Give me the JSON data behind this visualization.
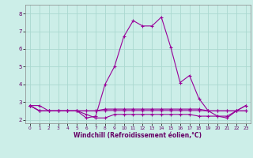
{
  "xlabel": "Windchill (Refroidissement éolien,°C)",
  "background_color": "#cceee8",
  "grid_color": "#aad8d0",
  "line_color": "#990099",
  "xlim": [
    -0.5,
    23.5
  ],
  "ylim": [
    1.8,
    8.5
  ],
  "xticks": [
    0,
    1,
    2,
    3,
    4,
    5,
    6,
    7,
    8,
    9,
    10,
    11,
    12,
    13,
    14,
    15,
    16,
    17,
    18,
    19,
    20,
    21,
    22,
    23
  ],
  "yticks": [
    2,
    3,
    4,
    5,
    6,
    7,
    8
  ],
  "series": [
    [
      2.8,
      2.8,
      2.5,
      2.5,
      2.5,
      2.5,
      2.1,
      2.2,
      4.0,
      5.0,
      6.7,
      7.6,
      7.3,
      7.3,
      7.8,
      6.1,
      4.1,
      4.5,
      3.2,
      2.5,
      2.2,
      2.1,
      2.5,
      2.8
    ],
    [
      2.8,
      2.5,
      2.5,
      2.5,
      2.5,
      2.5,
      2.5,
      2.5,
      2.6,
      2.6,
      2.6,
      2.6,
      2.6,
      2.6,
      2.6,
      2.6,
      2.6,
      2.6,
      2.6,
      2.5,
      2.5,
      2.5,
      2.5,
      2.5
    ],
    [
      2.8,
      2.5,
      2.5,
      2.5,
      2.5,
      2.5,
      2.5,
      2.5,
      2.52,
      2.52,
      2.52,
      2.52,
      2.52,
      2.52,
      2.52,
      2.52,
      2.52,
      2.52,
      2.52,
      2.5,
      2.5,
      2.5,
      2.5,
      2.5
    ],
    [
      2.8,
      2.5,
      2.5,
      2.5,
      2.5,
      2.5,
      2.3,
      2.1,
      2.1,
      2.3,
      2.3,
      2.3,
      2.3,
      2.3,
      2.3,
      2.3,
      2.3,
      2.3,
      2.2,
      2.2,
      2.2,
      2.2,
      2.5,
      2.8
    ]
  ]
}
